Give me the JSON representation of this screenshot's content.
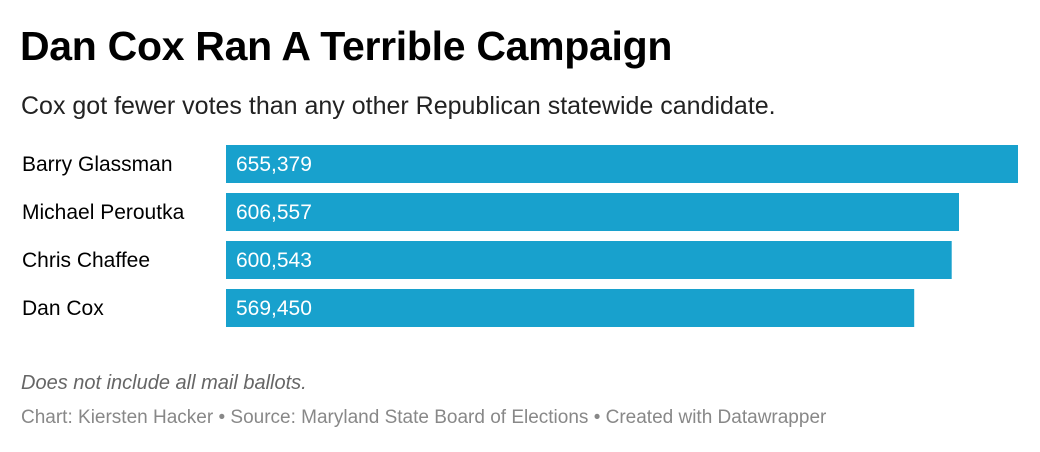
{
  "header": {
    "title": "Dan Cox Ran A Terrible Campaign",
    "subtitle": "Cox got fewer votes than any other Republican statewide candidate."
  },
  "footer": {
    "note": "Does not include all mail ballots.",
    "credits": "Chart: Kiersten Hacker • Source: Maryland State Board of Elections • Created with Datawrapper"
  },
  "colors": {
    "bar": "#18a1cd",
    "bar_label": "#ffffff",
    "category_label": "#000000"
  },
  "chart_data": {
    "type": "bar",
    "orientation": "horizontal",
    "title": "Dan Cox Ran A Terrible Campaign",
    "subtitle": "Cox got fewer votes than any other Republican statewide candidate.",
    "categories": [
      "Barry Glassman",
      "Michael Peroutka",
      "Chris Chaffee",
      "Dan Cox"
    ],
    "values": [
      655379,
      606557,
      600543,
      569450
    ],
    "value_labels": [
      "655,379",
      "606,557",
      "600,543",
      "569,450"
    ],
    "xlim": [
      0,
      655379
    ],
    "grid": false,
    "legend": "none"
  }
}
